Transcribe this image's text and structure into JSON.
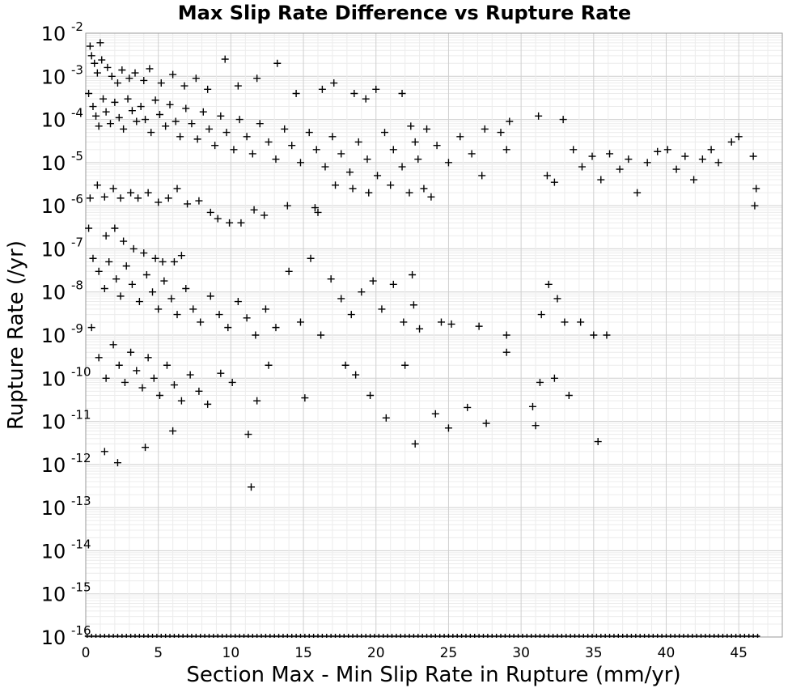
{
  "chart_data": {
    "type": "scatter",
    "title": "Max Slip Rate Difference vs Rupture Rate",
    "xlabel": "Section Max - Min Slip Rate in Rupture (mm/yr)",
    "ylabel": "Rupture Rate (/yr)",
    "xlim": [
      0,
      48
    ],
    "ylim": [
      1e-16,
      0.01
    ],
    "y_scale": "log",
    "grid": true,
    "marker": "+",
    "marker_color": "#000000",
    "x_ticks": [
      "0",
      "5",
      "10",
      "15",
      "20",
      "25",
      "30",
      "35",
      "40",
      "45"
    ],
    "y_ticks": [
      {
        "base": "10",
        "exp": "-2"
      },
      {
        "base": "10",
        "exp": "-3"
      },
      {
        "base": "10",
        "exp": "-4"
      },
      {
        "base": "10",
        "exp": "-5"
      },
      {
        "base": "10",
        "exp": "-6"
      },
      {
        "base": "10",
        "exp": "-7"
      },
      {
        "base": "10",
        "exp": "-8"
      },
      {
        "base": "10",
        "exp": "-9"
      },
      {
        "base": "10",
        "exp": "-10"
      },
      {
        "base": "10",
        "exp": "-11"
      },
      {
        "base": "10",
        "exp": "-12"
      },
      {
        "base": "10",
        "exp": "-13"
      },
      {
        "base": "10",
        "exp": "-14"
      },
      {
        "base": "10",
        "exp": "-15"
      },
      {
        "base": "10",
        "exp": "-16"
      }
    ],
    "series": [
      {
        "points": [
          [
            0.3,
            0.005
          ],
          [
            0.4,
            0.003
          ],
          [
            0.6,
            0.002
          ],
          [
            0.8,
            0.0012
          ],
          [
            1.0,
            0.006
          ],
          [
            1.1,
            0.0024
          ],
          [
            1.5,
            0.0016
          ],
          [
            1.8,
            0.001
          ],
          [
            2.2,
            0.0007
          ],
          [
            2.5,
            0.0014
          ],
          [
            3.0,
            0.0009
          ],
          [
            3.4,
            0.0012
          ],
          [
            4.0,
            0.0008
          ],
          [
            4.4,
            0.0015
          ],
          [
            5.2,
            0.0007
          ],
          [
            6.0,
            0.0011
          ],
          [
            6.8,
            0.0006
          ],
          [
            7.6,
            0.0009
          ],
          [
            8.4,
            0.0005
          ],
          [
            9.6,
            0.0025
          ],
          [
            10.5,
            0.0006
          ],
          [
            11.8,
            0.0009
          ],
          [
            13.2,
            0.002
          ],
          [
            14.5,
            0.0004
          ],
          [
            16.3,
            0.0005
          ],
          [
            17.1,
            0.0007
          ],
          [
            18.5,
            0.0004
          ],
          [
            19.3,
            0.0003
          ],
          [
            20.0,
            0.0005
          ],
          [
            21.8,
            0.0004
          ],
          [
            0.2,
            0.0004
          ],
          [
            0.5,
            0.0002
          ],
          [
            0.7,
            0.00012
          ],
          [
            0.9,
            7e-05
          ],
          [
            1.2,
            0.0003
          ],
          [
            1.4,
            0.00015
          ],
          [
            1.7,
            8e-05
          ],
          [
            2.0,
            0.00025
          ],
          [
            2.3,
            0.00011
          ],
          [
            2.6,
            6e-05
          ],
          [
            2.9,
            0.0003
          ],
          [
            3.2,
            0.00016
          ],
          [
            3.5,
            9e-05
          ],
          [
            3.8,
            0.0002
          ],
          [
            4.1,
            0.0001
          ],
          [
            4.5,
            5e-05
          ],
          [
            4.8,
            0.00028
          ],
          [
            5.1,
            0.00013
          ],
          [
            5.5,
            7e-05
          ],
          [
            5.8,
            0.00022
          ],
          [
            6.2,
            9e-05
          ],
          [
            6.5,
            4e-05
          ],
          [
            6.9,
            0.00018
          ],
          [
            7.3,
            8e-05
          ],
          [
            7.7,
            3.5e-05
          ],
          [
            8.1,
            0.00015
          ],
          [
            8.5,
            6e-05
          ],
          [
            8.9,
            2.5e-05
          ],
          [
            9.3,
            0.00012
          ],
          [
            9.7,
            5e-05
          ],
          [
            10.2,
            2e-05
          ],
          [
            10.6,
            0.0001
          ],
          [
            11.1,
            4e-05
          ],
          [
            11.5,
            1.6e-05
          ],
          [
            12.0,
            8e-05
          ],
          [
            12.6,
            3e-05
          ],
          [
            13.1,
            1.2e-05
          ],
          [
            13.7,
            6e-05
          ],
          [
            14.2,
            2.5e-05
          ],
          [
            14.8,
            1e-05
          ],
          [
            15.4,
            5e-05
          ],
          [
            15.9,
            2e-05
          ],
          [
            16.5,
            8e-06
          ],
          [
            17.0,
            4e-05
          ],
          [
            17.6,
            1.6e-05
          ],
          [
            18.2,
            6e-06
          ],
          [
            18.8,
            3e-05
          ],
          [
            19.4,
            1.2e-05
          ],
          [
            20.1,
            5e-06
          ],
          [
            20.6,
            5e-05
          ],
          [
            21.2,
            2e-05
          ],
          [
            21.8,
            8e-06
          ],
          [
            22.4,
            7e-05
          ],
          [
            22.7,
            3e-05
          ],
          [
            22.9,
            1.2e-05
          ],
          [
            23.5,
            6e-05
          ],
          [
            24.2,
            2.5e-05
          ],
          [
            25.0,
            1e-05
          ],
          [
            25.8,
            4e-05
          ],
          [
            26.6,
            1.6e-05
          ],
          [
            27.5,
            6e-05
          ],
          [
            28.6,
            5e-05
          ],
          [
            29.0,
            2e-05
          ],
          [
            29.2,
            9e-05
          ],
          [
            31.2,
            0.00012
          ],
          [
            31.8,
            5e-06
          ],
          [
            32.3,
            3.5e-06
          ],
          [
            32.9,
            0.0001
          ],
          [
            33.6,
            2e-05
          ],
          [
            34.2,
            8e-06
          ],
          [
            34.9,
            1.4e-05
          ],
          [
            35.5,
            4e-06
          ],
          [
            36.1,
            1.6e-05
          ],
          [
            36.8,
            7e-06
          ],
          [
            37.4,
            1.2e-05
          ],
          [
            38.0,
            2e-06
          ],
          [
            38.7,
            1e-05
          ],
          [
            39.4,
            1.8e-05
          ],
          [
            40.1,
            2e-05
          ],
          [
            40.7,
            7e-06
          ],
          [
            41.3,
            1.4e-05
          ],
          [
            41.9,
            4e-06
          ],
          [
            42.5,
            1.2e-05
          ],
          [
            43.1,
            2e-05
          ],
          [
            43.6,
            1e-05
          ],
          [
            44.5,
            3e-05
          ],
          [
            45.0,
            4e-05
          ],
          [
            46.0,
            1.4e-05
          ],
          [
            46.2,
            2.5e-06
          ],
          [
            46.1,
            1e-06
          ],
          [
            0.3,
            1.5e-06
          ],
          [
            0.8,
            3e-06
          ],
          [
            1.3,
            1.6e-06
          ],
          [
            1.9,
            2.5e-06
          ],
          [
            2.4,
            1.5e-06
          ],
          [
            3.1,
            2e-06
          ],
          [
            3.6,
            1.5e-06
          ],
          [
            4.3,
            2e-06
          ],
          [
            5.0,
            1.2e-06
          ],
          [
            5.7,
            1.5e-06
          ],
          [
            6.3,
            2.5e-06
          ],
          [
            7.0,
            1.1e-06
          ],
          [
            7.8,
            1.3e-06
          ],
          [
            8.6,
            7e-07
          ],
          [
            9.1,
            5e-07
          ],
          [
            9.9,
            4e-07
          ],
          [
            10.7,
            4e-07
          ],
          [
            11.6,
            8e-07
          ],
          [
            12.3,
            6e-07
          ],
          [
            13.9,
            1e-06
          ],
          [
            15.8,
            9e-07
          ],
          [
            16.0,
            7e-07
          ],
          [
            17.2,
            3e-06
          ],
          [
            18.4,
            2.5e-06
          ],
          [
            19.5,
            2e-06
          ],
          [
            21.0,
            3e-06
          ],
          [
            22.3,
            2e-06
          ],
          [
            23.3,
            2.5e-06
          ],
          [
            23.8,
            1.6e-06
          ],
          [
            27.3,
            5e-06
          ],
          [
            0.2,
            3e-07
          ],
          [
            1.4,
            2e-07
          ],
          [
            2.0,
            3e-07
          ],
          [
            2.6,
            1.5e-07
          ],
          [
            3.3,
            1e-07
          ],
          [
            4.0,
            8e-08
          ],
          [
            4.8,
            6e-08
          ],
          [
            5.3,
            5e-08
          ],
          [
            6.1,
            5e-08
          ],
          [
            6.6,
            7e-08
          ],
          [
            0.5,
            6e-08
          ],
          [
            0.9,
            3e-08
          ],
          [
            1.3,
            1.2e-08
          ],
          [
            1.6,
            5e-08
          ],
          [
            2.1,
            2e-08
          ],
          [
            2.4,
            8e-09
          ],
          [
            2.8,
            4e-08
          ],
          [
            3.2,
            1.5e-08
          ],
          [
            3.7,
            6e-09
          ],
          [
            4.2,
            2.5e-08
          ],
          [
            4.6,
            1e-08
          ],
          [
            5.0,
            4e-09
          ],
          [
            5.4,
            1.8e-08
          ],
          [
            5.9,
            7e-09
          ],
          [
            6.3,
            3e-09
          ],
          [
            6.9,
            1.2e-08
          ],
          [
            7.4,
            4e-09
          ],
          [
            7.9,
            2e-09
          ],
          [
            8.6,
            8e-09
          ],
          [
            9.2,
            3e-09
          ],
          [
            9.8,
            1.5e-09
          ],
          [
            10.5,
            6e-09
          ],
          [
            11.1,
            2.5e-09
          ],
          [
            11.7,
            1e-09
          ],
          [
            12.4,
            4e-09
          ],
          [
            13.1,
            1.5e-09
          ],
          [
            14.0,
            3e-08
          ],
          [
            14.8,
            2e-09
          ],
          [
            15.5,
            6e-08
          ],
          [
            16.2,
            1e-09
          ],
          [
            16.9,
            2e-08
          ],
          [
            17.6,
            7e-09
          ],
          [
            18.3,
            3e-09
          ],
          [
            19.0,
            1e-08
          ],
          [
            19.8,
            1.8e-08
          ],
          [
            20.4,
            4e-09
          ],
          [
            21.2,
            1.5e-08
          ],
          [
            21.9,
            2e-09
          ],
          [
            22.5,
            2.5e-08
          ],
          [
            22.6,
            5e-09
          ],
          [
            23.0,
            1.4e-09
          ],
          [
            24.5,
            2e-09
          ],
          [
            25.2,
            1.8e-09
          ],
          [
            27.1,
            1.6e-09
          ],
          [
            29.0,
            1e-09
          ],
          [
            31.4,
            3e-09
          ],
          [
            31.9,
            1.5e-08
          ],
          [
            32.5,
            7e-09
          ],
          [
            33.0,
            2e-09
          ],
          [
            34.1,
            2e-09
          ],
          [
            35.0,
            1e-09
          ],
          [
            35.9,
            1e-09
          ],
          [
            0.4,
            1.5e-09
          ],
          [
            0.9,
            3e-10
          ],
          [
            1.4,
            1e-10
          ],
          [
            1.9,
            6e-10
          ],
          [
            2.3,
            2e-10
          ],
          [
            2.7,
            8e-11
          ],
          [
            3.1,
            4e-10
          ],
          [
            3.5,
            1.5e-10
          ],
          [
            3.9,
            6e-11
          ],
          [
            4.3,
            3e-10
          ],
          [
            4.7,
            1e-10
          ],
          [
            5.1,
            4e-11
          ],
          [
            5.6,
            2e-10
          ],
          [
            6.1,
            7e-11
          ],
          [
            6.6,
            3e-11
          ],
          [
            7.2,
            1.2e-10
          ],
          [
            7.8,
            5e-11
          ],
          [
            8.4,
            2.5e-11
          ],
          [
            9.3,
            1.3e-10
          ],
          [
            10.1,
            8e-11
          ],
          [
            11.8,
            3e-11
          ],
          [
            12.6,
            2e-10
          ],
          [
            15.1,
            3.5e-11
          ],
          [
            17.9,
            2e-10
          ],
          [
            18.6,
            1.2e-10
          ],
          [
            19.6,
            4e-11
          ],
          [
            20.7,
            1.2e-11
          ],
          [
            22.0,
            2e-10
          ],
          [
            24.1,
            1.5e-11
          ],
          [
            25.0,
            7e-12
          ],
          [
            26.3,
            2.1e-11
          ],
          [
            27.6,
            9e-12
          ],
          [
            29.0,
            4e-10
          ],
          [
            30.8,
            2.2e-11
          ],
          [
            31.3,
            8e-11
          ],
          [
            31.0,
            8e-12
          ],
          [
            32.3,
            1e-10
          ],
          [
            33.3,
            4e-11
          ],
          [
            1.3,
            2e-12
          ],
          [
            2.2,
            1.1e-12
          ],
          [
            4.1,
            2.5e-12
          ],
          [
            6.0,
            6e-12
          ],
          [
            11.2,
            5e-12
          ],
          [
            22.7,
            3e-12
          ],
          [
            35.3,
            3.4e-12
          ],
          [
            11.4,
            3e-13
          ]
        ]
      }
    ]
  }
}
